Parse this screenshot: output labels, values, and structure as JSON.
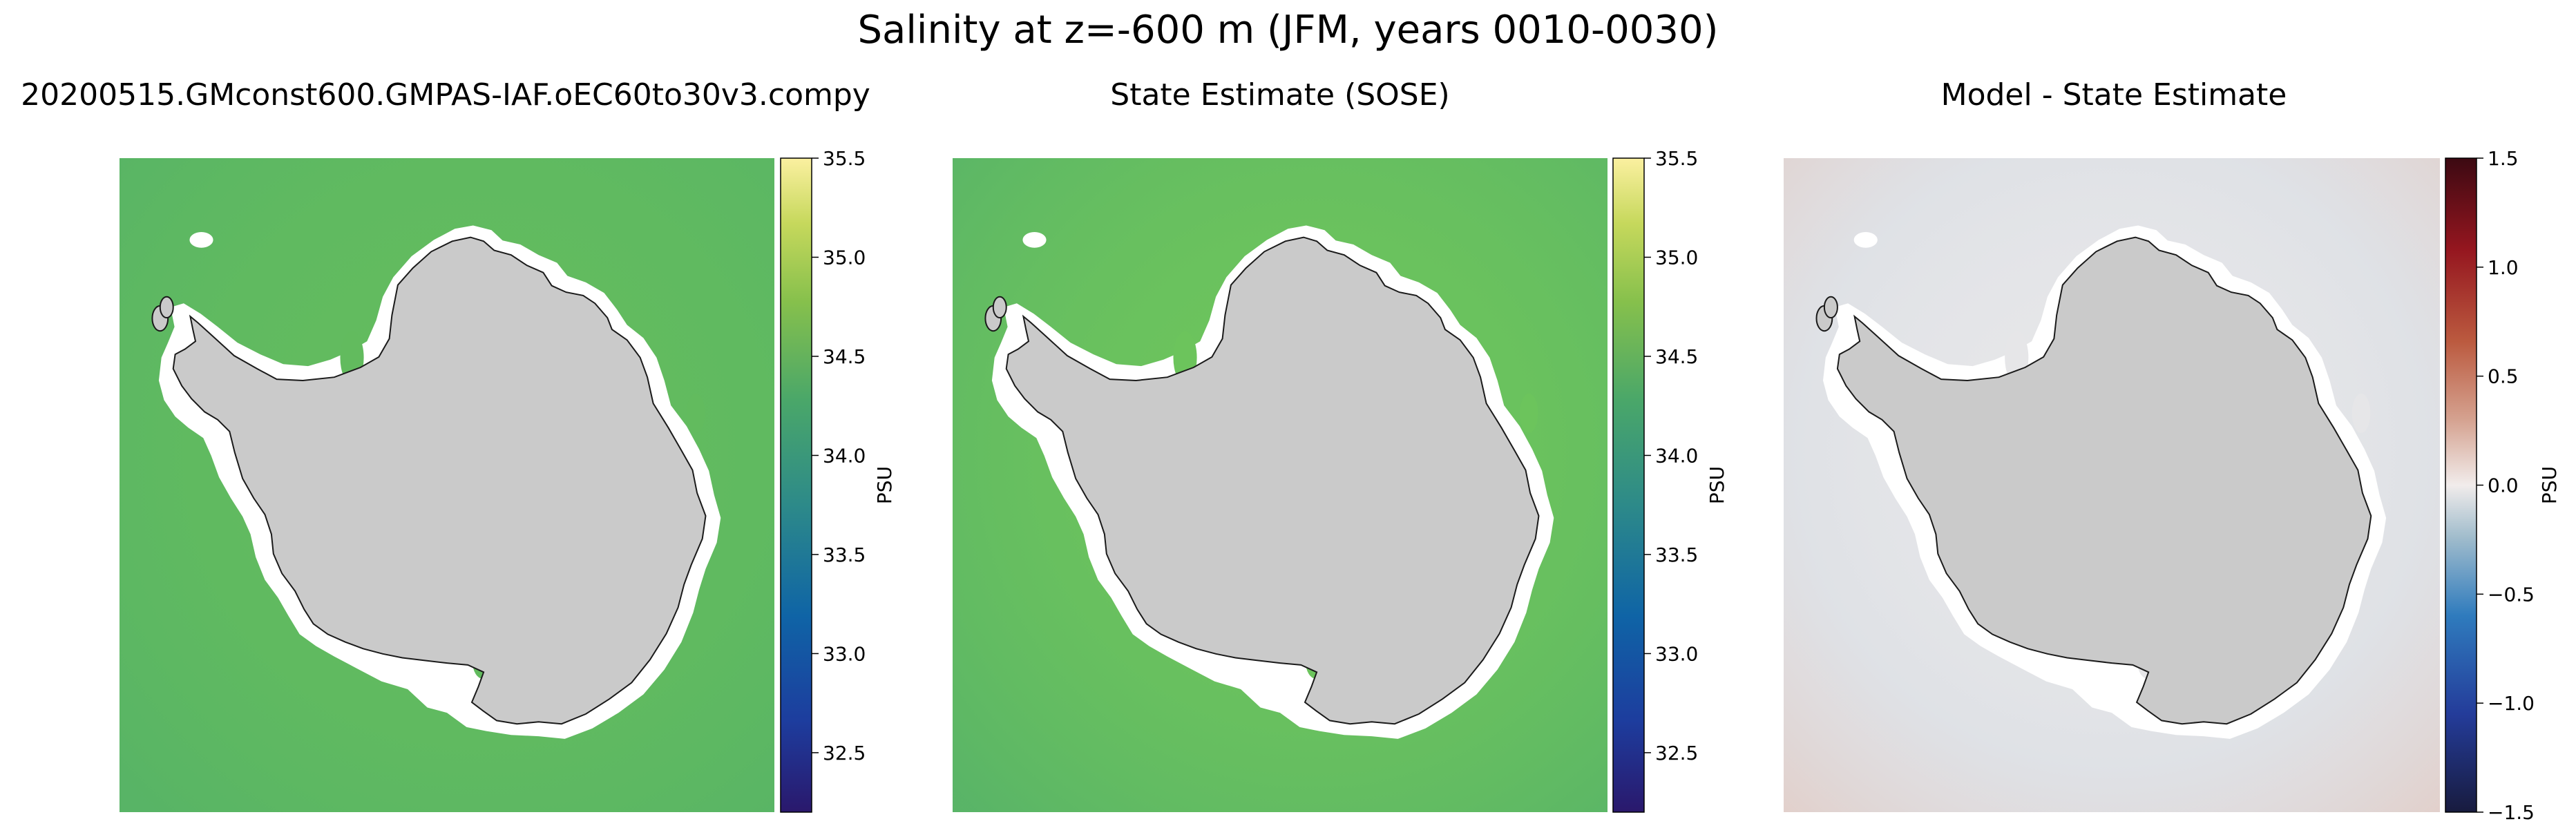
{
  "figure": {
    "suptitle": "Salinity at z=-600 m (JFM, years 0010-0030)"
  },
  "panels": [
    {
      "title": "20200515.GMconst600.GMPAS-IAF.oEC60to30v3.compy",
      "colorbar": {
        "label": "PSU",
        "ticks": [
          "35.5",
          "35.0",
          "34.5",
          "34.0",
          "33.5",
          "33.0",
          "32.5"
        ],
        "colormap": "haline"
      }
    },
    {
      "title": "State Estimate (SOSE)",
      "colorbar": {
        "label": "PSU",
        "ticks": [
          "35.5",
          "35.0",
          "34.5",
          "34.0",
          "33.5",
          "33.0",
          "32.5"
        ],
        "colormap": "haline"
      }
    },
    {
      "title": "Model - State Estimate",
      "colorbar": {
        "label": "PSU",
        "ticks": [
          "1.5",
          "1.0",
          "0.5",
          "0.0",
          "−0.5",
          "−1.0",
          "−1.5"
        ],
        "colormap": "balance"
      }
    }
  ],
  "chart_data": [
    {
      "type": "heatmap",
      "title": "20200515.GMconst600.GMPAS-IAF.oEC60to30v3.compy",
      "variable": "Salinity",
      "units": "PSU",
      "clim": [
        32.2,
        35.5
      ],
      "colorbar_ticks": [
        32.5,
        33.0,
        33.5,
        34.0,
        34.5,
        35.0,
        35.5
      ],
      "colors": {
        "ocean": "#62bb5e",
        "land": "#cacaca",
        "no_data": "#ffffff"
      }
    },
    {
      "type": "heatmap",
      "title": "State Estimate (SOSE)",
      "variable": "Salinity",
      "units": "PSU",
      "clim": [
        32.2,
        35.5
      ],
      "colorbar_ticks": [
        32.5,
        33.0,
        33.5,
        34.0,
        34.5,
        35.0,
        35.5
      ],
      "colors": {
        "ocean": "#6cc45c",
        "land": "#cacaca",
        "no_data": "#ffffff"
      }
    },
    {
      "type": "heatmap",
      "title": "Model - State Estimate",
      "variable": "Salinity difference",
      "units": "PSU",
      "clim": [
        -1.5,
        1.5
      ],
      "colorbar_ticks": [
        -1.5,
        -1.0,
        -0.5,
        0.0,
        0.5,
        1.0,
        1.5
      ],
      "colors": {
        "ocean": "#e6e6e8",
        "land": "#cacaca",
        "no_data": "#ffffff"
      }
    }
  ]
}
